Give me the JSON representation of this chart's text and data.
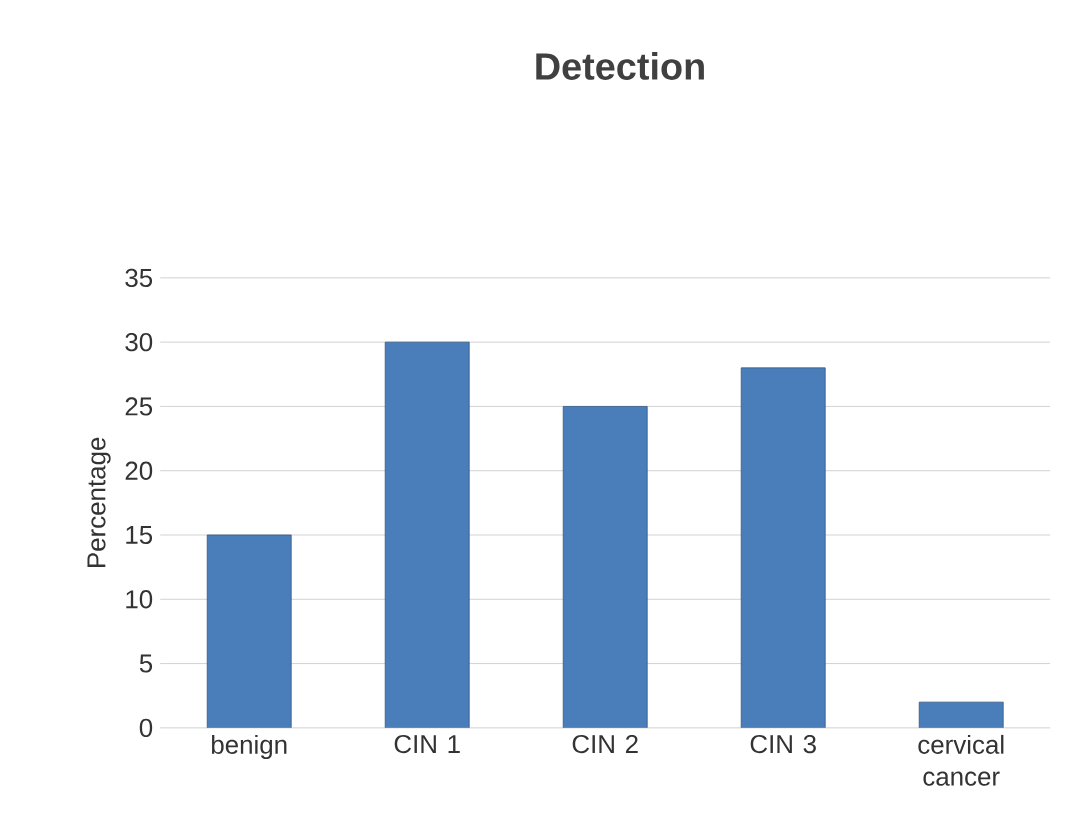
{
  "chart_data": {
    "type": "bar",
    "title": "Detection",
    "ylabel": "Percentage",
    "categories": [
      "benign",
      "CIN 1",
      "CIN 2",
      "CIN 3",
      "cervical cancer"
    ],
    "values": [
      15,
      30,
      25,
      28,
      2
    ],
    "color": "#4a7ebb",
    "ylim": [
      0,
      35
    ],
    "yticks": [
      0,
      5,
      10,
      15,
      20,
      25,
      30,
      35
    ],
    "grid": "y"
  }
}
